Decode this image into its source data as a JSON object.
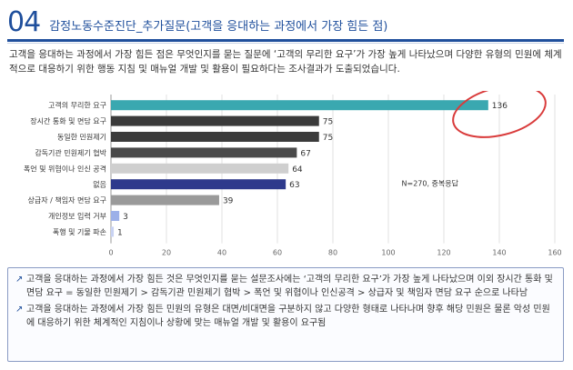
{
  "header": {
    "number": "04",
    "title": "감정노동수준진단_추가질문(고객을 응대하는 과정에서 가장 힘든 점)"
  },
  "intro": "고객을 응대하는 과정에서 가장 힘든 점은 무엇인지를 묻는 질문에 ‘고객의 무리한 요구’가 가장 높게 나타났으며 다양한 유형의 민원에 체계적으로 대응하기 위한 행동 지침 및 매뉴얼 개발 및 활용이 필요하다는 조사결과가 도출되었습니다.",
  "chart_data": {
    "type": "bar",
    "orientation": "horizontal",
    "title": "",
    "xlabel": "",
    "ylabel": "",
    "xlim": [
      0,
      160
    ],
    "xticks": [
      0,
      20,
      40,
      60,
      80,
      100,
      120,
      140,
      160
    ],
    "grid": true,
    "annotation": "N=270, 중복응답",
    "categories": [
      "고객의 무리한 요구",
      "장시간 통화 및 면담 요구",
      "동일한 민원제기",
      "감독기관 민원제기 협박",
      "폭언 및 위협이나 인신 공격",
      "없음",
      "상급자 / 책임자 면담 요구",
      "개인정보 입력 거부",
      "폭행 및 기물 파손"
    ],
    "values": [
      136,
      75,
      75,
      67,
      64,
      63,
      39,
      3,
      1
    ],
    "colors": [
      "#3aa8b0",
      "#3b3b3b",
      "#3b3b3b",
      "#4a4a4a",
      "#cfcfcf",
      "#2e3a8c",
      "#9a9a9a",
      "#9cb0e8",
      "#c8d2f2"
    ]
  },
  "notes": [
    {
      "mark": "↗",
      "text": "고객을 응대하는 과정에서 가장 힘든 것은 무엇인지를 묻는 설문조사에는 ‘고객의 무리한 요구’가 가장 높게 나타났으며 이외 장시간 통화 및 면담 요구 = 동일한 민원제기 > 감독기관 민원제기 협박 > 폭언 및 위협이나 인신공격 > 상급자 및 책임자 면담 요구 순으로 나타남"
    },
    {
      "mark": "↗",
      "text": "고객을 응대하는 과정에서 가장 힘든 민원의 유형은 대면/비대면을 구분하지 않고 다양한 형태로 나타나며 향후 해당 민원은 물론 악성 민원에 대응하기 위한 체계적인 지침이나 상황에 맞는 매뉴얼 개발 및 활용이 요구됨"
    }
  ]
}
